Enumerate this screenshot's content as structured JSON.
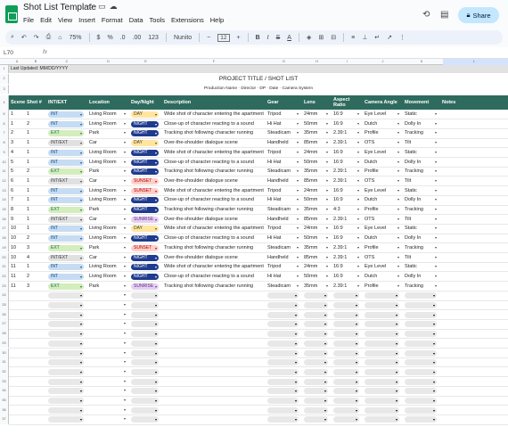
{
  "app": {
    "doc_title": "Shot List Template",
    "menus": [
      "File",
      "Edit",
      "View",
      "Insert",
      "Format",
      "Data",
      "Tools",
      "Extensions",
      "Help"
    ],
    "share_label": "Share"
  },
  "toolbar": {
    "zoom": "75%",
    "currency": "$",
    "percent": "%",
    "decimal_dec": ".0",
    "decimal_inc": ".00",
    "number_format": "123",
    "font": "Nunito",
    "font_size": "12"
  },
  "formula_bar": {
    "name_box": "L70",
    "fx": "fx"
  },
  "columns": [
    "A",
    "B",
    "C",
    "D",
    "E",
    "F",
    "G",
    "H",
    "I",
    "J",
    "K",
    "L"
  ],
  "sheet": {
    "last_updated": "Last Updated: MM/DD/YYYY",
    "project_title": "PROJECT TITLE / SHOT LIST",
    "production_line": "Production Name · Director · DP · Date · Camera System",
    "headers": [
      "Scene",
      "Shot #",
      "INT/EXT",
      "Location",
      "Day/Night",
      "Description",
      "Gear",
      "Lens",
      "Aspect Ratio",
      "Camera Angle",
      "Movement",
      "Notes"
    ],
    "rows": [
      {
        "scene": "1",
        "shot": "1",
        "ie": "INT",
        "loc": "Living Room",
        "dn": "DAY",
        "desc": "Wide shot of character entering the apartment",
        "gear": "Tripod",
        "lens": "24mm",
        "ar": "16:9",
        "angle": "Eye Level",
        "move": "Static"
      },
      {
        "scene": "1",
        "shot": "2",
        "ie": "INT",
        "loc": "Living Room",
        "dn": "NIGHT",
        "desc": "Close-up of character reacting to a sound",
        "gear": "Hi Hat",
        "lens": "50mm",
        "ar": "16:9",
        "angle": "Dutch",
        "move": "Dolly In"
      },
      {
        "scene": "2",
        "shot": "1",
        "ie": "EXT",
        "loc": "Park",
        "dn": "NIGHT",
        "desc": "Tracking shot following character running",
        "gear": "Steadicam",
        "lens": "35mm",
        "ar": "2.39:1",
        "angle": "Profile",
        "move": "Tracking"
      },
      {
        "scene": "3",
        "shot": "1",
        "ie": "INT/EXT",
        "loc": "Car",
        "dn": "DAY",
        "desc": "Over-the-shoulder dialogue scene",
        "gear": "Handheld",
        "lens": "85mm",
        "ar": "2.39:1",
        "angle": "OTS",
        "move": "Tilt"
      },
      {
        "scene": "4",
        "shot": "1",
        "ie": "INT",
        "loc": "Living Room",
        "dn": "NIGHT",
        "desc": "Wide shot of character entering the apartment",
        "gear": "Tripod",
        "lens": "24mm",
        "ar": "16:9",
        "angle": "Eye Level",
        "move": "Static"
      },
      {
        "scene": "5",
        "shot": "1",
        "ie": "INT",
        "loc": "Living Room",
        "dn": "NIGHT",
        "desc": "Close-up of character reacting to a sound",
        "gear": "Hi Hat",
        "lens": "50mm",
        "ar": "16:9",
        "angle": "Dutch",
        "move": "Dolly In"
      },
      {
        "scene": "5",
        "shot": "2",
        "ie": "EXT",
        "loc": "Park",
        "dn": "NIGHT",
        "desc": "Tracking shot following character running",
        "gear": "Steadicam",
        "lens": "35mm",
        "ar": "2.39:1",
        "angle": "Profile",
        "move": "Tracking"
      },
      {
        "scene": "6",
        "shot": "1",
        "ie": "INT/EXT",
        "loc": "Car",
        "dn": "SUNSET",
        "desc": "Over-the-shoulder dialogue scene",
        "gear": "Handheld",
        "lens": "85mm",
        "ar": "2.39:1",
        "angle": "OTS",
        "move": "Tilt"
      },
      {
        "scene": "6",
        "shot": "1",
        "ie": "INT",
        "loc": "Living Room",
        "dn": "SUNSET",
        "desc": "Wide shot of character entering the apartment",
        "gear": "Tripod",
        "lens": "24mm",
        "ar": "16:9",
        "angle": "Eye Level",
        "move": "Static"
      },
      {
        "scene": "7",
        "shot": "1",
        "ie": "INT",
        "loc": "Living Room",
        "dn": "NIGHT",
        "desc": "Close-up of character reacting to a sound",
        "gear": "Hi Hat",
        "lens": "50mm",
        "ar": "16:9",
        "angle": "Dutch",
        "move": "Dolly In"
      },
      {
        "scene": "8",
        "shot": "1",
        "ie": "EXT",
        "loc": "Park",
        "dn": "NIGHT",
        "desc": "Tracking shot following character running",
        "gear": "Steadicam",
        "lens": "35mm",
        "ar": "4:3",
        "angle": "Profile",
        "move": "Tracking"
      },
      {
        "scene": "9",
        "shot": "1",
        "ie": "INT/EXT",
        "loc": "Car",
        "dn": "SUNRISE",
        "desc": "Over-the-shoulder dialogue scene",
        "gear": "Handheld",
        "lens": "85mm",
        "ar": "2.39:1",
        "angle": "OTS",
        "move": "Tilt"
      },
      {
        "scene": "10",
        "shot": "1",
        "ie": "INT",
        "loc": "Living Room",
        "dn": "DAY",
        "desc": "Wide shot of character entering the apartment",
        "gear": "Tripod",
        "lens": "24mm",
        "ar": "16:9",
        "angle": "Eye Level",
        "move": "Static"
      },
      {
        "scene": "10",
        "shot": "2",
        "ie": "INT",
        "loc": "Living Room",
        "dn": "NIGHT",
        "desc": "Close-up of character reacting to a sound",
        "gear": "Hi Hat",
        "lens": "50mm",
        "ar": "16:9",
        "angle": "Dutch",
        "move": "Dolly In"
      },
      {
        "scene": "10",
        "shot": "3",
        "ie": "EXT",
        "loc": "Park",
        "dn": "SUNSET",
        "desc": "Tracking shot following character running",
        "gear": "Steadicam",
        "lens": "35mm",
        "ar": "2.39:1",
        "angle": "Profile",
        "move": "Tracking"
      },
      {
        "scene": "10",
        "shot": "4",
        "ie": "INT/EXT",
        "loc": "Car",
        "dn": "NIGHT",
        "desc": "Over-the-shoulder dialogue scene",
        "gear": "Handheld",
        "lens": "85mm",
        "ar": "2.39:1",
        "angle": "OTS",
        "move": "Tilt"
      },
      {
        "scene": "11",
        "shot": "1",
        "ie": "INT",
        "loc": "Living Room",
        "dn": "NIGHT",
        "desc": "Wide shot of character entering the apartment",
        "gear": "Tripod",
        "lens": "24mm",
        "ar": "16:9",
        "angle": "Eye Level",
        "move": "Static"
      },
      {
        "scene": "11",
        "shot": "2",
        "ie": "INT",
        "loc": "Living Room",
        "dn": "NIGHT",
        "desc": "Close-up of character reacting to a sound",
        "gear": "Hi Hat",
        "lens": "50mm",
        "ar": "16:9",
        "angle": "Dutch",
        "move": "Dolly In"
      },
      {
        "scene": "11",
        "shot": "3",
        "ie": "EXT",
        "loc": "Park",
        "dn": "SUNRISE",
        "desc": "Tracking shot following character running",
        "gear": "Steadicam",
        "lens": "35mm",
        "ar": "2.39:1",
        "angle": "Profile",
        "move": "Tracking"
      }
    ],
    "empty_rows": 14
  },
  "colors": {
    "header_bg": "#2e6b5e",
    "accent": "#0b57d0"
  },
  "icons": [
    "sheets-logo-icon",
    "star-icon",
    "move-icon",
    "cloud-status-icon",
    "history-icon",
    "comment-icon",
    "meet-icon",
    "lock-icon",
    "search-icon",
    "undo-icon",
    "redo-icon",
    "print-icon",
    "paint-format-icon"
  ]
}
